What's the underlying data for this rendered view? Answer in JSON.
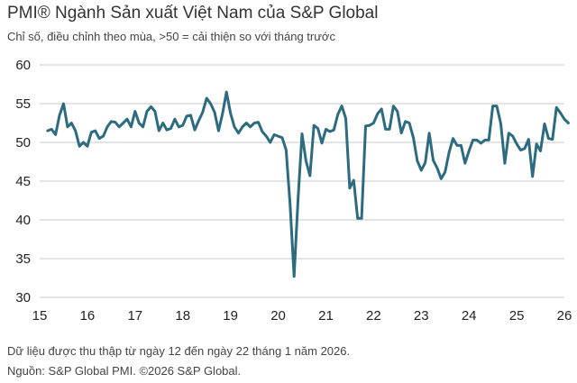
{
  "header": {
    "title": "PMI® Ngành Sản xuất Việt Nam của S&P Global",
    "subtitle": "Chỉ số, điều chỉnh theo mùa, >50 = cải thiện so với tháng trước"
  },
  "footer": {
    "note": "Dữ liệu được thu thập từ ngày 12 đến ngày 22 tháng 1 năm 2026.",
    "source": "Nguồn: S&P Global PMI. ©2026 S&P Global."
  },
  "chart_data": {
    "type": "line",
    "title": "PMI® Ngành Sản xuất Việt Nam của S&P Global",
    "subtitle": "Chỉ số, điều chỉnh theo mùa, >50 = cải thiện so với tháng trước",
    "xlabel": "",
    "ylabel": "",
    "x_start": "2015-03",
    "x_end": "2026-01",
    "xlim": [
      2015,
      2026
    ],
    "ylim": [
      30,
      60
    ],
    "y_ticks": [
      30,
      35,
      40,
      45,
      50,
      55,
      60
    ],
    "x_tick_labels": [
      "15",
      "16",
      "17",
      "18",
      "19",
      "20",
      "21",
      "22",
      "23",
      "24",
      "25",
      "26"
    ],
    "gridlines": "horizontal",
    "line_color": "#2c6b80",
    "reference_line": 50,
    "values": [
      51.5,
      51.7,
      51.0,
      53.5,
      55.0,
      52.0,
      52.5,
      51.5,
      49.5,
      50.0,
      49.5,
      51.3,
      51.5,
      50.5,
      50.8,
      52.0,
      52.7,
      52.6,
      52.0,
      52.5,
      53.0,
      52.0,
      54.0,
      52.5,
      52.0,
      54.0,
      54.6,
      54.0,
      51.5,
      52.5,
      51.6,
      51.8,
      53.0,
      52.0,
      52.2,
      53.4,
      53.5,
      51.6,
      52.8,
      53.9,
      55.7,
      55.0,
      53.9,
      51.5,
      53.7,
      56.5,
      53.8,
      52.0,
      51.2,
      52.0,
      52.5,
      52.0,
      52.5,
      52.6,
      51.4,
      50.8,
      50.0,
      51.0,
      50.8,
      50.6,
      49.0,
      41.9,
      32.7,
      42.7,
      51.1,
      47.6,
      45.7,
      52.2,
      51.8,
      49.9,
      51.7,
      51.4,
      51.6,
      53.6,
      54.7,
      53.1,
      44.1,
      45.1,
      40.2,
      40.2,
      52.1,
      52.2,
      52.5,
      53.7,
      54.3,
      51.7,
      51.7,
      54.7,
      54.0,
      51.2,
      52.7,
      52.5,
      50.6,
      47.6,
      46.4,
      47.4,
      51.2,
      47.7,
      46.7,
      45.3,
      46.2,
      48.7,
      50.5,
      49.6,
      49.6,
      47.3,
      48.9,
      50.3,
      50.3,
      49.9,
      50.3,
      50.3,
      54.7,
      54.7,
      52.4,
      47.3,
      51.2,
      50.8,
      49.8,
      49.0,
      49.2,
      50.4,
      45.6,
      49.8,
      48.9,
      52.4,
      50.5,
      50.4,
      54.5,
      53.8,
      53.0,
      52.5
    ]
  }
}
